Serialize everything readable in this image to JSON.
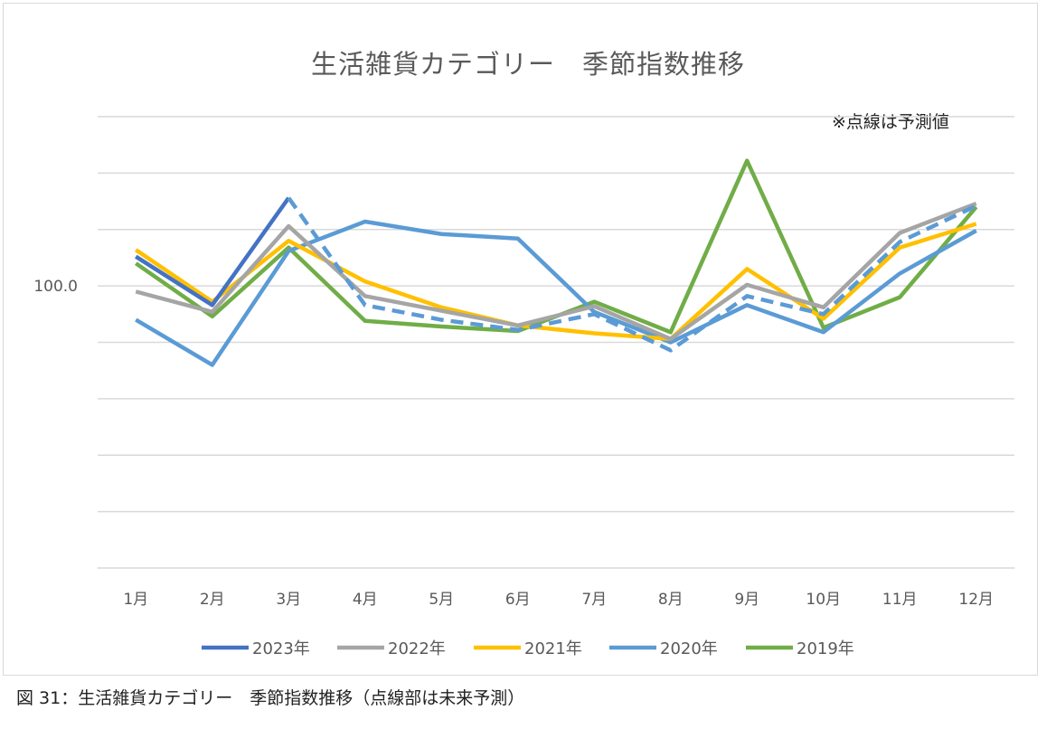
{
  "chart_data": {
    "type": "line",
    "title": "生活雑貨カテゴリー　季節指数推移",
    "annotation": "※点線は予測値",
    "caption": "図 31：生活雑貨カテゴリー　季節指数推移（点線部は未来予測）",
    "xlabel": "",
    "ylabel": "",
    "categories": [
      "1月",
      "2月",
      "3月",
      "4月",
      "5月",
      "6月",
      "7月",
      "8月",
      "9月",
      "10月",
      "11月",
      "12月"
    ],
    "y_tick_labels": [
      {
        "value": 100,
        "label": "100.0"
      }
    ],
    "ylim": [
      75,
      115
    ],
    "grid": true,
    "legend_position": "bottom",
    "series": [
      {
        "name": "2023年",
        "color": "#4472c4",
        "style": "solid",
        "values": [
          102.6,
          98.3,
          107.8,
          null,
          null,
          null,
          null,
          null,
          null,
          null,
          null,
          null
        ]
      },
      {
        "name": "2022年",
        "color": "#a5a5a5",
        "style": "solid",
        "values": [
          99.5,
          97.7,
          105.3,
          99.1,
          97.8,
          96.5,
          98.2,
          95.3,
          100.1,
          98.1,
          104.7,
          107.3
        ]
      },
      {
        "name": "2021年",
        "color": "#ffc000",
        "style": "solid",
        "values": [
          103.2,
          98.6,
          104.0,
          100.4,
          98.1,
          96.5,
          95.8,
          95.3,
          101.5,
          97.1,
          103.4,
          105.5
        ]
      },
      {
        "name": "2020年",
        "color": "#5b9bd5",
        "style": "solid",
        "values": [
          97.0,
          93.0,
          103.1,
          105.7,
          104.6,
          104.2,
          97.7,
          95.0,
          98.3,
          95.9,
          101.1,
          104.9
        ]
      },
      {
        "name": "2019年",
        "color": "#70ad47",
        "style": "solid",
        "values": [
          102.0,
          97.3,
          103.4,
          96.9,
          96.4,
          96.0,
          98.6,
          95.9,
          111.1,
          96.3,
          99.0,
          107.0
        ]
      }
    ],
    "forecast": {
      "color": "#5b9bd5",
      "style": "dashed",
      "values": [
        null,
        null,
        107.8,
        98.3,
        97.0,
        96.1,
        97.5,
        94.3,
        99.1,
        97.5,
        103.9,
        107.1
      ]
    }
  }
}
